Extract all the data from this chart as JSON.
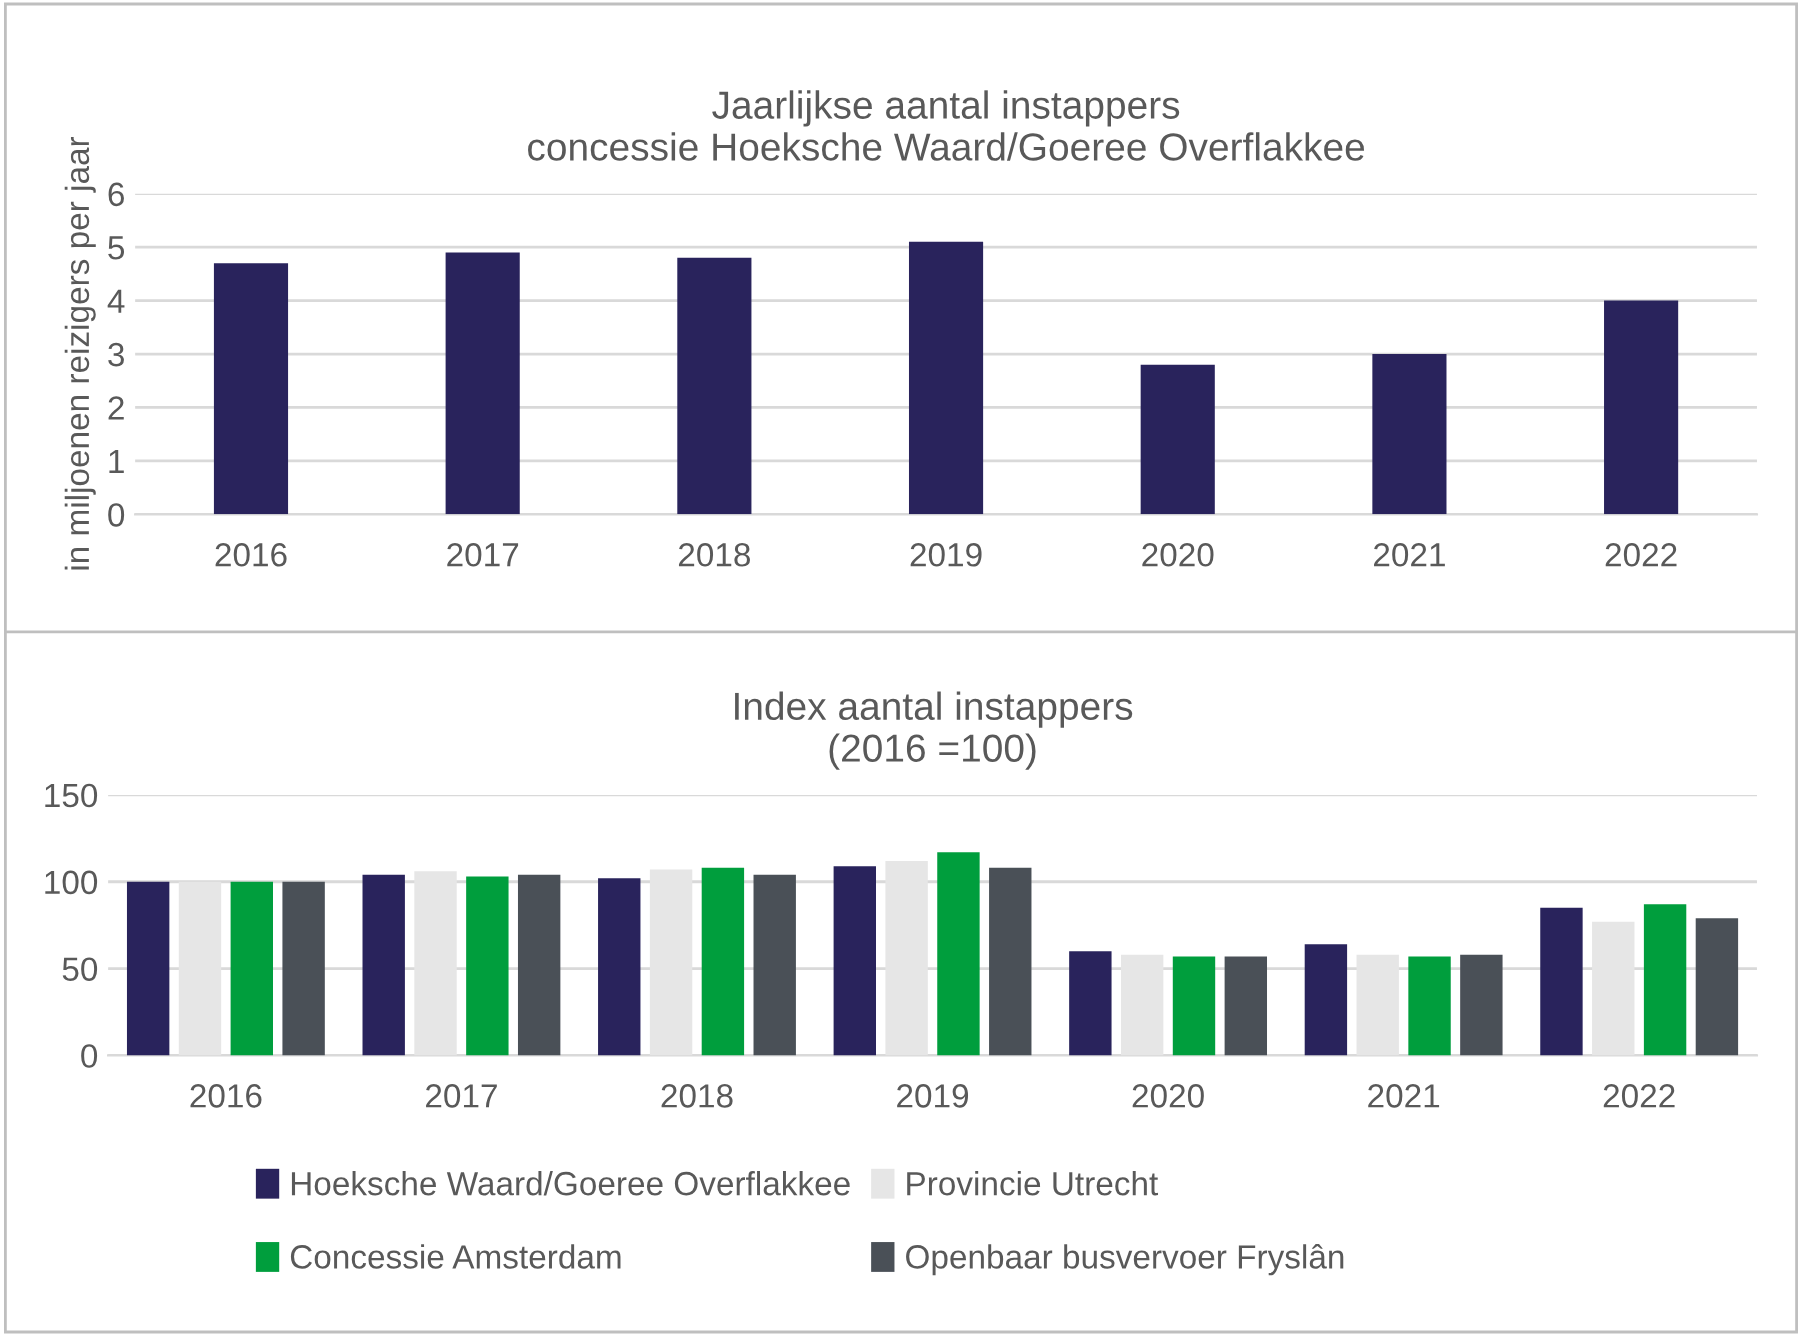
{
  "chart_data": [
    {
      "type": "bar",
      "title": "Jaarlijkse aantal instappers\nconcessie Hoeksche Waard/Goeree Overflakkee",
      "ylabel": "in miljoenen reizigers per jaar",
      "categories": [
        "2016",
        "2017",
        "2018",
        "2019",
        "2020",
        "2021",
        "2022"
      ],
      "values": [
        4.7,
        4.9,
        4.8,
        5.1,
        2.8,
        3.0,
        4.0
      ],
      "color": "#29235c",
      "ylim": [
        0,
        6
      ],
      "yticks": [
        0,
        1,
        2,
        3,
        4,
        5,
        6
      ],
      "grid": "y"
    },
    {
      "type": "bar",
      "title": "Index aantal instappers\n(2016 =100)",
      "categories": [
        "2016",
        "2017",
        "2018",
        "2019",
        "2020",
        "2021",
        "2022"
      ],
      "series": [
        {
          "name": "Hoeksche Waard/Goeree Overflakkee",
          "color": "#29235c",
          "values": [
            100,
            104,
            102,
            109,
            60,
            64,
            85
          ]
        },
        {
          "name": "Provincie Utrecht",
          "color": "#e6e6e6",
          "values": [
            100,
            106,
            107,
            112,
            58,
            58,
            77
          ]
        },
        {
          "name": "Concessie Amsterdam",
          "color": "#009e3d",
          "values": [
            100,
            103,
            108,
            117,
            57,
            57,
            87
          ]
        },
        {
          "name": "Openbaar busvervoer Fryslân",
          "color": "#4a5057",
          "values": [
            100,
            104,
            104,
            108,
            57,
            58,
            79
          ]
        }
      ],
      "ylim": [
        0,
        150
      ],
      "yticks": [
        0,
        50,
        100,
        150
      ],
      "grid": "y",
      "legend": "bottom"
    }
  ]
}
